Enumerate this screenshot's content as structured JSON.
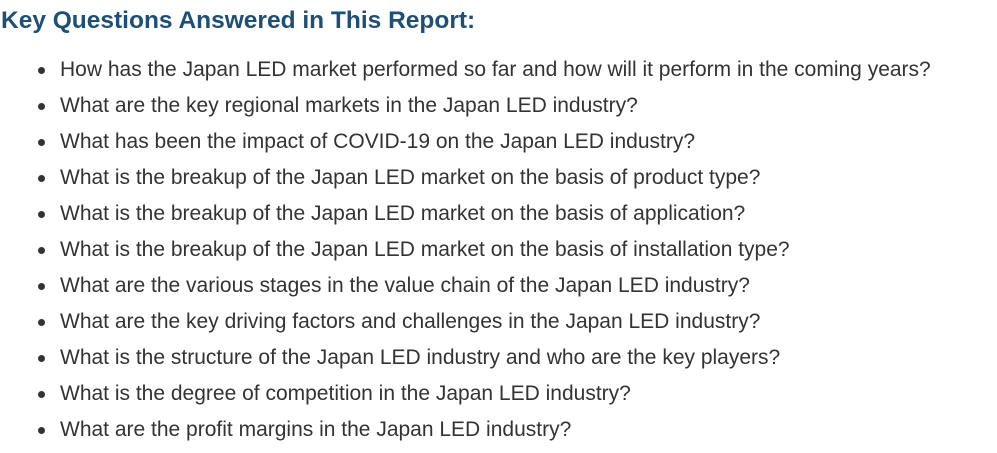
{
  "heading": "Key Questions Answered in This Report:",
  "questions": [
    "How has the Japan LED market performed so far and how will it perform in the coming years?",
    "What are the key regional markets in the Japan LED industry?",
    "What has been the impact of COVID-19 on the Japan LED industry?",
    "What is the breakup of the Japan LED market on the basis of product type?",
    "What is the breakup of the Japan LED market on the basis of application?",
    "What is the breakup of the Japan LED market on the basis of installation type?",
    "What are the various stages in the value chain of the Japan LED industry?",
    "What are the key driving factors and challenges in the Japan LED industry?",
    "What is the structure of the Japan LED industry and who are the key players?",
    "What is the degree of competition in the Japan LED industry?",
    "What are the profit margins in the Japan LED industry?"
  ],
  "colors": {
    "heading": "#1d4f77",
    "text": "#333333",
    "background": "#ffffff"
  }
}
